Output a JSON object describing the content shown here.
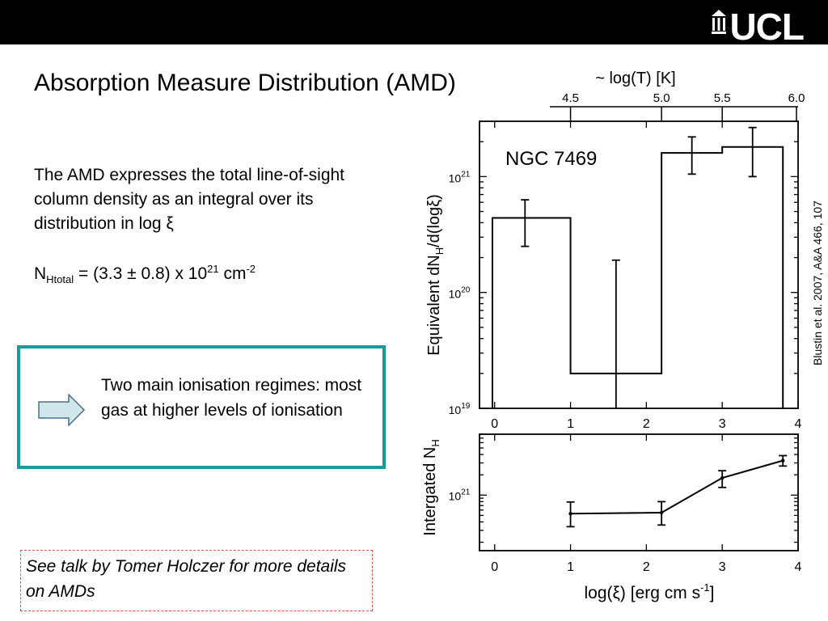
{
  "slide": {
    "logo_text": "UCL",
    "title": "Absorption Measure Distribution (AMD)",
    "paragraph": "The AMD expresses the total line-of-sight column density as an integral over its distribution in log ξ",
    "formula": {
      "lhs_main": "N",
      "lhs_sub": "Htotal",
      "middle": " = (3.3 ± 0.8) x 10",
      "exp": "21",
      "unit": " cm",
      "unit_exp": "-2"
    },
    "callout_text": "Two main ionisation regimes: most gas at higher levels of ionisation",
    "talk_note": "See talk by Tomer Holczer for more details on AMDs",
    "citation": "Blustin et al. 2007, A&A 466, 107",
    "colors": {
      "topbar": "#000000",
      "callout_border": "#1a9a9a",
      "arrow_fill": "#cfe7ea",
      "note_border": "#d9534f"
    }
  },
  "chart_data": [
    {
      "type": "bar",
      "subtype": "step-histogram",
      "annotation": "NGC 7469",
      "ylabel_main": "Equivalent dN",
      "ylabel_sub": "H",
      "ylabel_end": "/d(logξ)",
      "yscale": "log",
      "ylim": [
        1e+19,
        3e+21
      ],
      "yticks": [
        {
          "value": 1e+19,
          "label_base": "10",
          "label_exp": "19"
        },
        {
          "value": 1e+20,
          "label_base": "10",
          "label_exp": "20"
        },
        {
          "value": 1e+21,
          "label_base": "10",
          "label_exp": "21"
        }
      ],
      "xlim": [
        -0.2,
        4
      ],
      "xticks": [
        "0",
        "1",
        "2",
        "3",
        "4"
      ],
      "top_axis": {
        "label": "~ log(T) [K]",
        "ticks": [
          {
            "label": "4.5",
            "x": 1.0
          },
          {
            "label": "5.0",
            "x": 2.2
          },
          {
            "label": "5.5",
            "x": 3.0
          },
          {
            "label": "6.0",
            "x": 4.0
          }
        ]
      },
      "bins": [
        {
          "x0": -0.2,
          "x1": 1.0,
          "value": 4.4e+20,
          "err_x": 0.4,
          "err_low": 2.5e+20,
          "err_high": 6.3e+20
        },
        {
          "x0": 1.0,
          "x1": 2.2,
          "value": 2e+19,
          "err_x": 1.6,
          "err_low": 1e+19,
          "err_high": 1.9e+20
        },
        {
          "x0": 2.2,
          "x1": 3.0,
          "value": 1.6e+21,
          "err_x": 2.6,
          "err_low": 1.05e+21,
          "err_high": 2.2e+21
        },
        {
          "x0": 3.0,
          "x1": 3.8,
          "value": 1.8e+21,
          "err_x": 3.4,
          "err_low": 1e+21,
          "err_high": 2.65e+21
        }
      ]
    },
    {
      "type": "line",
      "ylabel_main": "Intergated N",
      "ylabel_sub": "H",
      "yscale": "log",
      "ylim": [
        1.5e+20,
        8e+21
      ],
      "yticks": [
        {
          "value": 1e+21,
          "label_base": "10",
          "label_exp": "21"
        }
      ],
      "xlim": [
        -0.2,
        4
      ],
      "xticks": [
        "0",
        "1",
        "2",
        "3",
        "4"
      ],
      "xlabel_main": "log(ξ) [erg cm s",
      "xlabel_exp": "-1",
      "xlabel_end": "]",
      "points": [
        {
          "x": 1.0,
          "y": 5.3e+20,
          "low": 3.4e+20,
          "high": 7.9e+20
        },
        {
          "x": 2.2,
          "y": 5.5e+20,
          "low": 3.6e+20,
          "high": 8e+20
        },
        {
          "x": 3.0,
          "y": 1.8e+21,
          "low": 1.3e+21,
          "high": 2.3e+21
        },
        {
          "x": 3.8,
          "y": 3.25e+21,
          "low": 2.7e+21,
          "high": 3.85e+21
        }
      ]
    }
  ]
}
